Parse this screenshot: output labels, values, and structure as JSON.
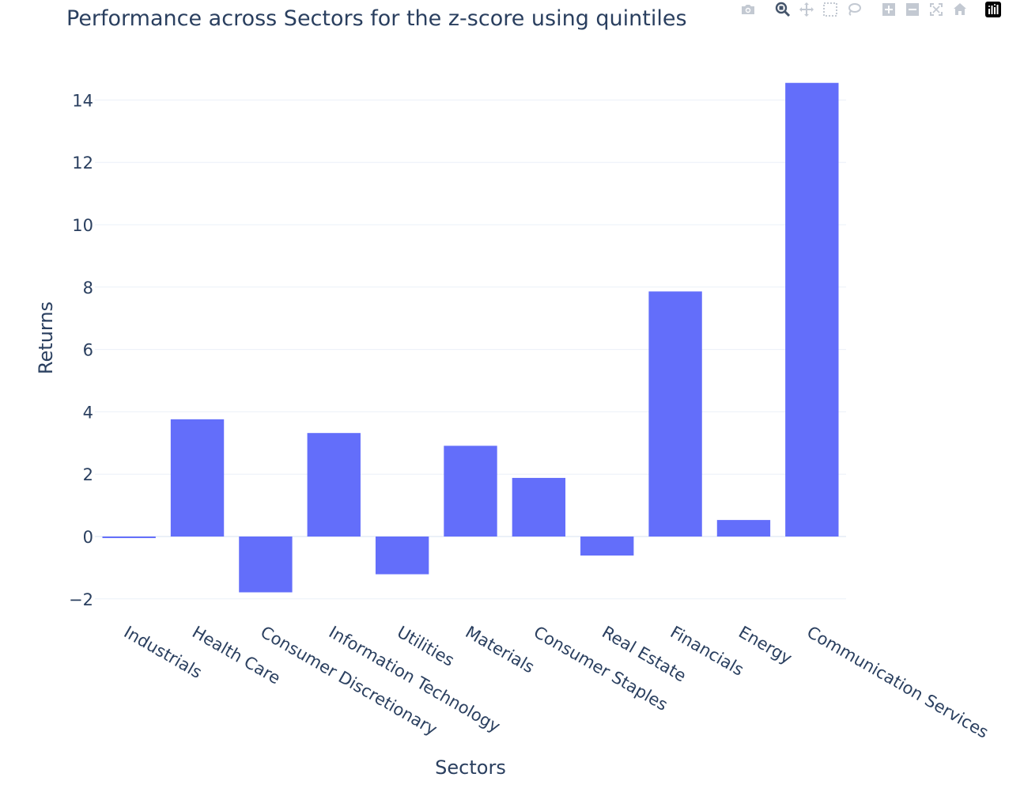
{
  "chart_data": {
    "type": "bar",
    "title": "Performance across Sectors for the z-score using quintiles",
    "xlabel": "Sectors",
    "ylabel": "Returns",
    "categories": [
      "Industrials",
      "Health Care",
      "Consumer Discretionary",
      "Information Technology",
      "Utilities",
      "Materials",
      "Consumer Staples",
      "Real Estate",
      "Financials",
      "Energy",
      "Communication Services"
    ],
    "values": [
      -0.05,
      3.76,
      -1.79,
      3.32,
      -1.21,
      2.91,
      1.88,
      -0.61,
      7.86,
      0.53,
      14.55
    ],
    "ylim": [
      -2.5,
      15.5
    ],
    "yticks": [
      -2,
      0,
      2,
      4,
      6,
      8,
      10,
      12,
      14
    ],
    "ytick_labels": [
      "−2",
      "0",
      "2",
      "4",
      "6",
      "8",
      "10",
      "12",
      "14"
    ],
    "grid": true,
    "bar_color": "#636efa",
    "colors": {
      "text": "#2a3f5f",
      "grid": "#ebf0f8",
      "zeroline": "#ebf0f8",
      "modebar_icon": "#c3c9d2"
    }
  },
  "modebar": {
    "icons": [
      "camera-icon",
      "zoom-icon",
      "pan-icon",
      "box-select-icon",
      "lasso-select-icon",
      "zoom-in-icon",
      "zoom-out-icon",
      "autoscale-icon",
      "reset-axes-icon",
      "plotly-logo-icon"
    ]
  }
}
